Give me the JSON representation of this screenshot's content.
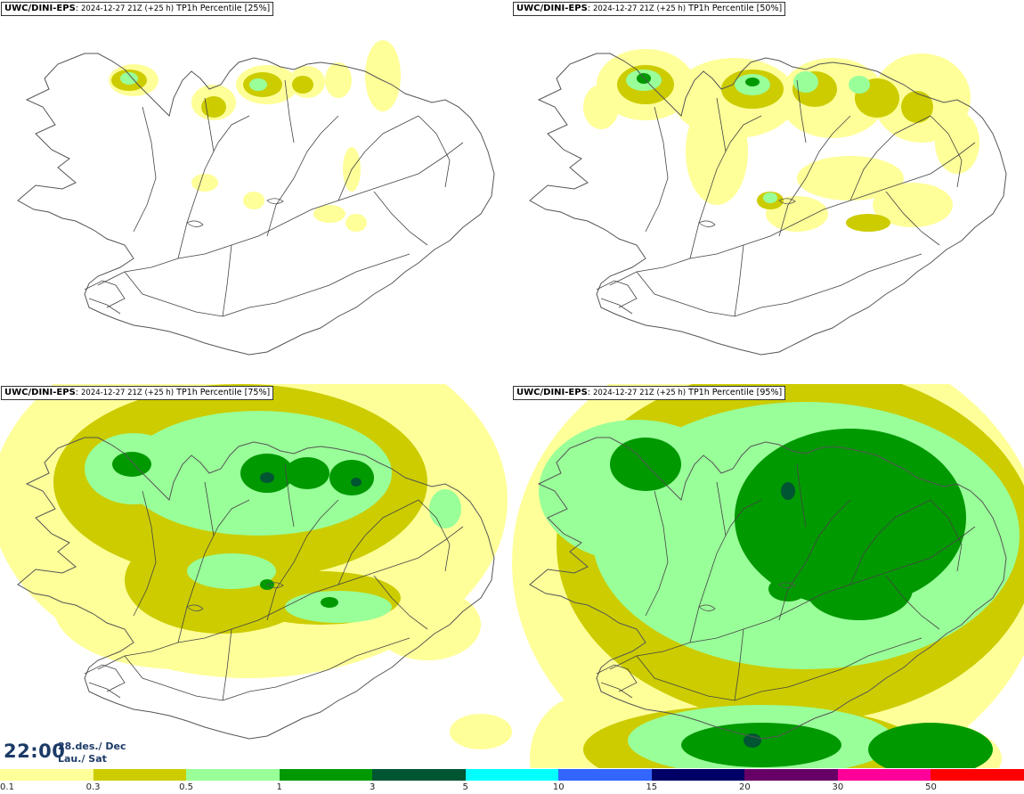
{
  "panels": [
    {
      "model": "UWC/DINI-EPS",
      "run": "2024-12-27 21Z (+25 h)",
      "field": "TP1h Percentile [25%]",
      "level": 0
    },
    {
      "model": "UWC/DINI-EPS",
      "run": "2024-12-27 21Z (+25 h)",
      "field": "TP1h Percentile [50%]",
      "level": 1
    },
    {
      "model": "UWC/DINI-EPS",
      "run": "2024-12-27 21Z (+25 h)",
      "field": "TP1h Percentile [75%]",
      "level": 2
    },
    {
      "model": "UWC/DINI-EPS",
      "run": "2024-12-27 21Z (+25 h)",
      "field": "TP1h Percentile [95%]",
      "level": 3
    }
  ],
  "valid_time": {
    "time": "22:00",
    "date": "28.des./ Dec",
    "day": "Lau./ Sat"
  },
  "legend": {
    "labels": [
      "0.1",
      "0.3",
      "0.5",
      "1",
      "3",
      "5",
      "10",
      "15",
      "20",
      "30",
      "50"
    ],
    "colors": [
      "#ffff99",
      "#cccc00",
      "#99ff99",
      "#009900",
      "#005533",
      "#00ffff",
      "#3366ff",
      "#000066",
      "#660066",
      "#ff0099",
      "#ff0000"
    ],
    "extra_colors": [
      "#ff6699",
      "#ff0000"
    ]
  },
  "map_colors": {
    "land_line": "#555555",
    "road_line": "#444444"
  }
}
